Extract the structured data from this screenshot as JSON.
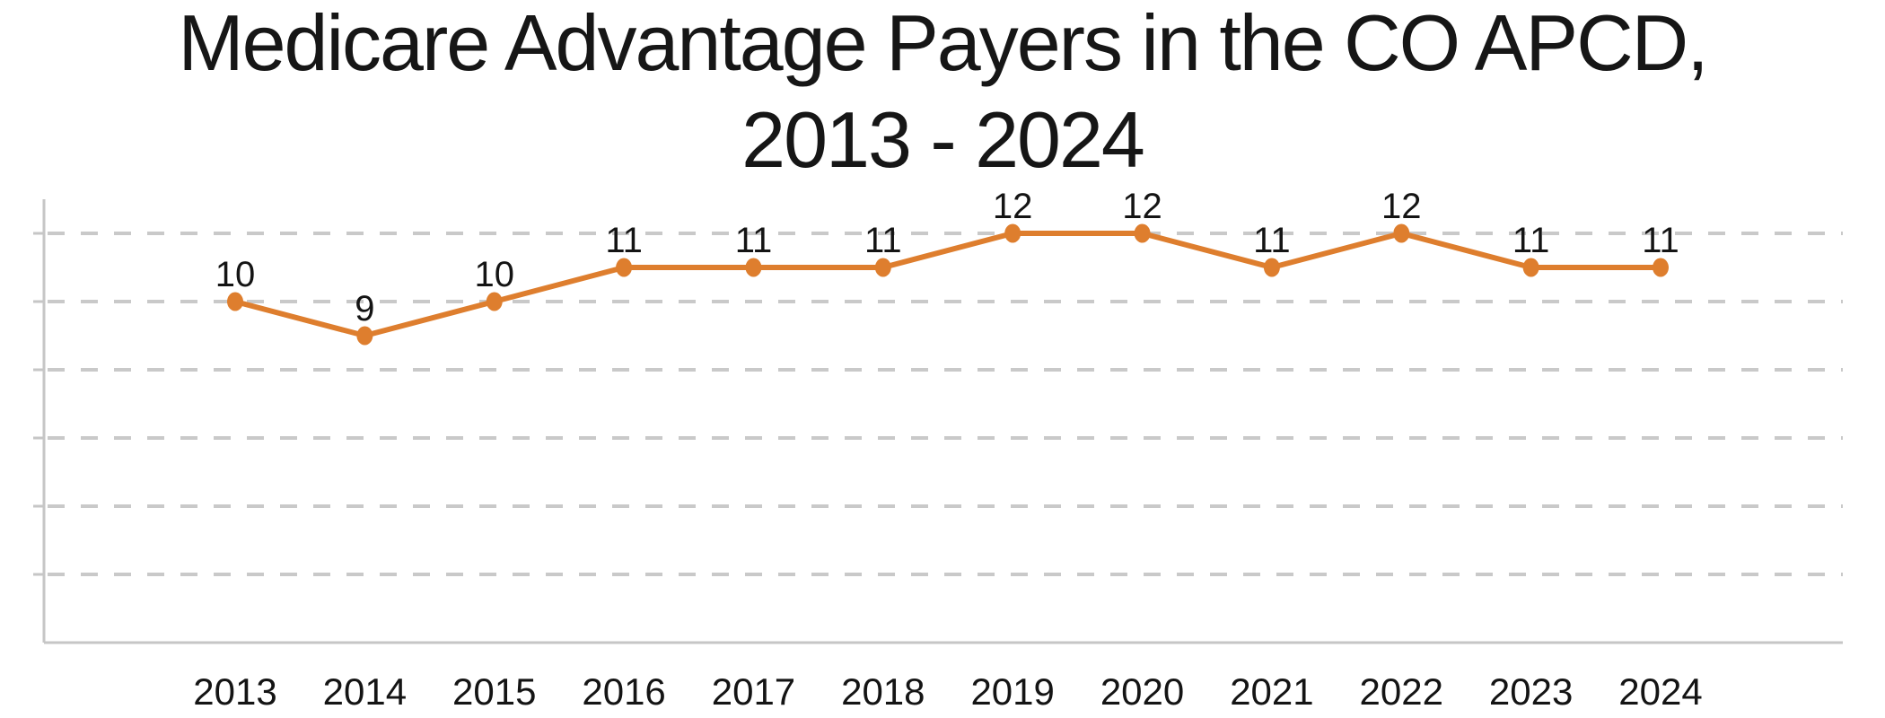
{
  "title": {
    "full": "Medicare Advantage Payers in the CO APCD, 2013 - 2024",
    "lines": [
      "Medicare Advantage Payers in the CO APCD,",
      "2013 - 2024"
    ]
  },
  "chart_data": {
    "type": "line",
    "title": "Medicare Advantage Payers in the CO APCD, 2013 - 2024",
    "categories": [
      "2013",
      "2014",
      "2015",
      "2016",
      "2017",
      "2018",
      "2019",
      "2020",
      "2021",
      "2022",
      "2023",
      "2024"
    ],
    "values": [
      10,
      9,
      10,
      11,
      11,
      11,
      12,
      12,
      11,
      12,
      11,
      11
    ],
    "xlabel": "",
    "ylabel": "",
    "ylim": [
      0,
      13
    ],
    "gridline_values": [
      2,
      4,
      6,
      8,
      10,
      12
    ],
    "grid": "horizontal-dashed",
    "legend_position": "none",
    "data_labels_shown": true,
    "marker": "filled-circle",
    "colors": {
      "line": "#DE7E2E",
      "marker": "#DE7E2E",
      "gridline": "#C9C9C9",
      "axis": "#C6C6C6",
      "text": "#141414"
    }
  }
}
